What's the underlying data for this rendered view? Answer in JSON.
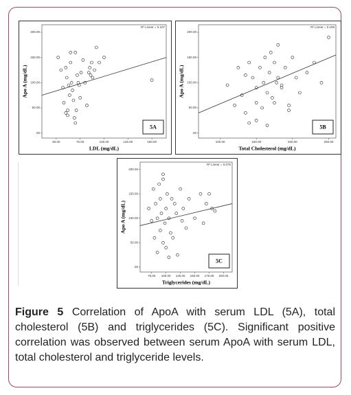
{
  "chart_data": [
    {
      "type": "scatter",
      "panel": "5A",
      "x_label": "LDL (mg/dL)",
      "y_label": "Apo A (mg/dL)",
      "r2_label": "R² Linear = 0.107",
      "xlim": [
        35,
        165
      ],
      "ylim": [
        -10,
        215
      ],
      "xticks": [
        {
          "value": 50,
          "label": "50.00"
        },
        {
          "value": 75,
          "label": "75.00"
        },
        {
          "value": 100,
          "label": "100.00"
        },
        {
          "value": 125,
          "label": "125.00"
        },
        {
          "value": 150,
          "label": "150.00"
        }
      ],
      "yticks": [
        {
          "value": 0,
          "label": ".00"
        },
        {
          "value": 50,
          "label": "50.00"
        },
        {
          "value": 100,
          "label": "100.00"
        },
        {
          "value": 150,
          "label": "150.00"
        },
        {
          "value": 200,
          "label": "200.00"
        }
      ],
      "x": [
        52,
        55,
        57,
        58,
        60,
        61,
        62,
        63,
        64,
        65,
        66,
        67,
        68,
        70,
        71,
        72,
        73,
        75,
        76,
        78,
        80,
        82,
        84,
        85,
        87,
        88,
        90,
        92,
        95,
        100,
        60,
        65,
        70,
        62,
        69,
        74,
        86,
        150
      ],
      "y": [
        150,
        125,
        90,
        60,
        40,
        110,
        35,
        95,
        75,
        140,
        100,
        85,
        65,
        160,
        45,
        115,
        100,
        70,
        120,
        145,
        100,
        55,
        120,
        130,
        140,
        110,
        125,
        170,
        140,
        150,
        130,
        160,
        20,
        45,
        30,
        95,
        115,
        105
      ],
      "fit": {
        "x": [
          35,
          165
        ],
        "y": [
          75,
          150
        ]
      }
    },
    {
      "type": "scatter",
      "panel": "5B",
      "x_label": "Total Cholesterol (mg/dL)",
      "y_label": "Apo A (mg/dL)",
      "r2_label": "R² Linear = 0.169",
      "xlim": [
        70,
        260
      ],
      "ylim": [
        -10,
        215
      ],
      "xticks": [
        {
          "value": 100,
          "label": "100.00"
        },
        {
          "value": 150,
          "label": "150.00"
        },
        {
          "value": 200,
          "label": "200.00"
        },
        {
          "value": 250,
          "label": "250.00"
        }
      ],
      "yticks": [
        {
          "value": 0,
          "label": ".00"
        },
        {
          "value": 50,
          "label": "50.00"
        },
        {
          "value": 100,
          "label": "100.00"
        },
        {
          "value": 150,
          "label": "150.00"
        },
        {
          "value": 200,
          "label": "200.00"
        }
      ],
      "x": [
        110,
        120,
        125,
        130,
        135,
        140,
        140,
        145,
        150,
        150,
        155,
        158,
        160,
        162,
        165,
        168,
        170,
        172,
        175,
        178,
        180,
        180,
        185,
        190,
        195,
        200,
        205,
        210,
        220,
        230,
        240,
        250,
        150,
        165,
        175,
        185,
        195,
        135
      ],
      "y": [
        95,
        55,
        130,
        75,
        40,
        140,
        20,
        110,
        60,
        90,
        130,
        50,
        100,
        150,
        80,
        120,
        160,
        70,
        140,
        100,
        110,
        175,
        90,
        130,
        55,
        150,
        110,
        80,
        120,
        140,
        100,
        190,
        25,
        15,
        60,
        95,
        45,
        115
      ],
      "fit": {
        "x": [
          70,
          260
        ],
        "y": [
          40,
          155
        ]
      }
    },
    {
      "type": "scatter",
      "panel": "5C",
      "x_label": "Triglycerides (mg/dL)",
      "y_label": "Apo A (mg/dL)",
      "r2_label": "R² Linear = 0.075",
      "xlim": [
        55,
        215
      ],
      "ylim": [
        -10,
        215
      ],
      "xticks": [
        {
          "value": 75,
          "label": "75.00"
        },
        {
          "value": 100,
          "label": "100.00"
        },
        {
          "value": 125,
          "label": "125.00"
        },
        {
          "value": 150,
          "label": "150.00"
        },
        {
          "value": 175,
          "label": "175.00"
        },
        {
          "value": 200,
          "label": "200.00"
        }
      ],
      "yticks": [
        {
          "value": 0,
          "label": ".00"
        },
        {
          "value": 50,
          "label": "50.00"
        },
        {
          "value": 100,
          "label": "100.00"
        },
        {
          "value": 150,
          "label": "150.00"
        },
        {
          "value": 200,
          "label": "200.00"
        }
      ],
      "x": [
        70,
        75,
        78,
        80,
        82,
        85,
        85,
        88,
        90,
        90,
        92,
        95,
        95,
        98,
        100,
        100,
        102,
        105,
        108,
        110,
        112,
        115,
        118,
        120,
        125,
        128,
        130,
        135,
        140,
        150,
        160,
        165,
        170,
        175,
        180,
        185,
        95,
        105
      ],
      "y": [
        120,
        95,
        160,
        60,
        130,
        100,
        30,
        170,
        75,
        140,
        110,
        50,
        180,
        90,
        120,
        40,
        150,
        100,
        70,
        140,
        60,
        130,
        110,
        25,
        160,
        95,
        120,
        80,
        140,
        100,
        150,
        90,
        130,
        150,
        120,
        115,
        190,
        20
      ],
      "fit": {
        "x": [
          55,
          215
        ],
        "y": [
          85,
          130
        ]
      }
    }
  ],
  "caption": {
    "label": "Figure 5",
    "text": "Correlation of ApoA with serum LDL (5A), total cholesterol (5B) and triglycerides (5C). Significant positive correlation was observed between serum ApoA with serum LDL, total cholesterol and triglyceride levels."
  }
}
